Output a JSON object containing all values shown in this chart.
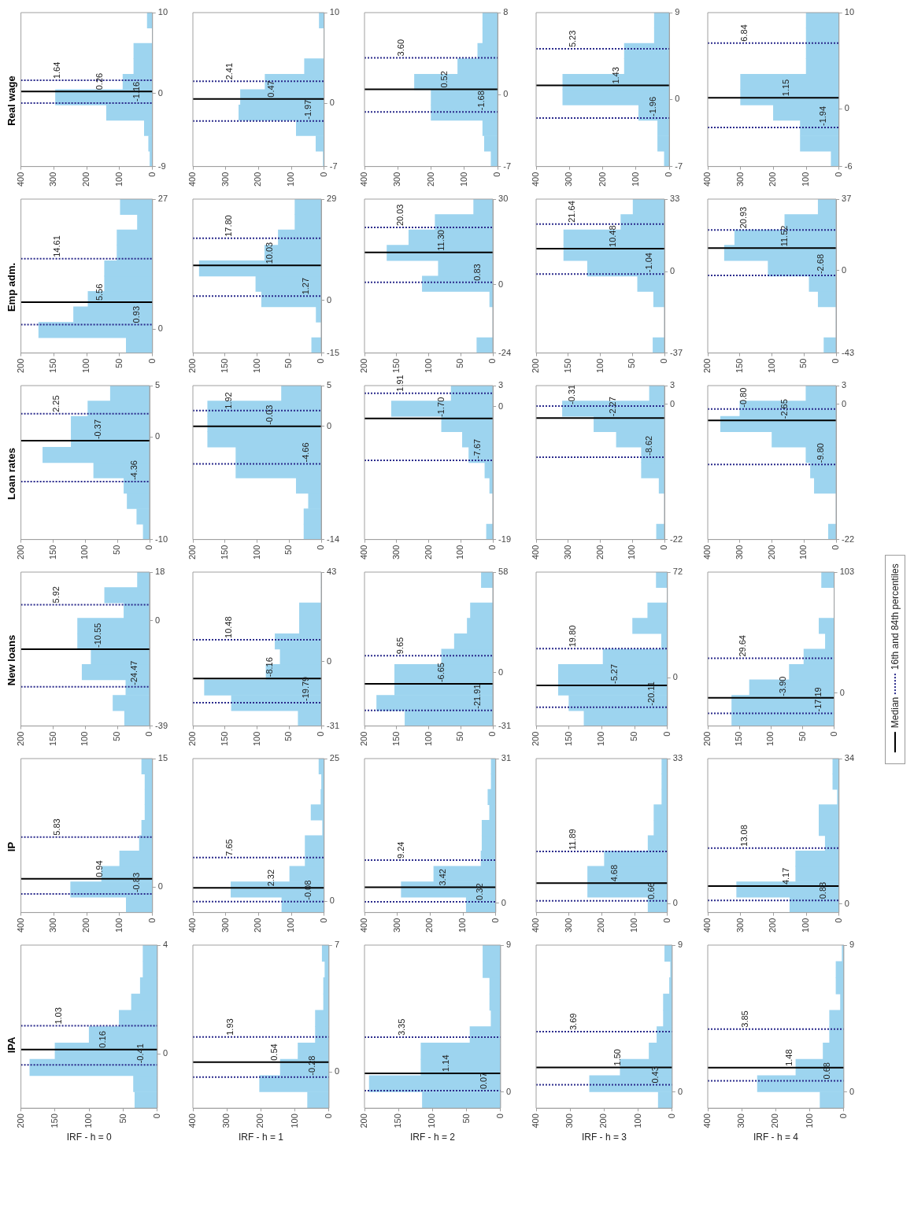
{
  "chart_data": [
    {
      "type": "histogram",
      "orientation": "horizontal",
      "title": "Real wage",
      "bins": [
        -9,
        -7.1,
        -5.2,
        -3.3,
        -1.4,
        0.5,
        2.4,
        4.3,
        6.2,
        8.1,
        10
      ],
      "values": [
        8,
        12,
        25,
        140,
        295,
        90,
        57,
        57,
        0,
        16
      ],
      "color": "#9dd4ef",
      "xlim": [
        400,
        0
      ],
      "xticks": [
        0,
        100,
        200,
        300,
        400
      ],
      "ylim": [
        -9,
        10
      ],
      "yticks": [
        -9,
        0,
        10
      ],
      "ref_lines": [
        {
          "axis": "y",
          "value": -1.16,
          "label": "-1.16",
          "color": "#2b2b8c",
          "line_style": "dotted"
        },
        {
          "axis": "y",
          "value": 0.26,
          "label": "0.26",
          "color": "#000000",
          "line_style": "solid"
        },
        {
          "axis": "y",
          "value": 1.64,
          "label": "1.64",
          "color": "#2b2b8c",
          "line_style": "dotted"
        }
      ]
    },
    {
      "type": "histogram",
      "orientation": "horizontal",
      "bins": [
        -7,
        -5.3,
        -3.6,
        -1.9,
        -0.2,
        1.5,
        3.2,
        4.9,
        6.6,
        8.3,
        10
      ],
      "values": [
        3,
        25,
        85,
        260,
        255,
        180,
        60,
        0,
        0,
        15
      ],
      "color": "#9dd4ef",
      "xlim": [
        400,
        0
      ],
      "xticks": [
        0,
        100,
        200,
        300,
        400
      ],
      "ylim": [
        -7,
        10
      ],
      "yticks": [
        -7,
        0,
        10
      ],
      "ref_lines": [
        {
          "axis": "y",
          "value": -1.97,
          "label": "-1.97",
          "color": "#2b2b8c",
          "line_style": "dotted"
        },
        {
          "axis": "y",
          "value": 0.47,
          "label": "0.47",
          "color": "#000000",
          "line_style": "solid"
        },
        {
          "axis": "y",
          "value": 2.41,
          "label": "2.41",
          "color": "#2b2b8c",
          "line_style": "dotted"
        }
      ]
    },
    {
      "type": "histogram",
      "orientation": "horizontal",
      "bins": [
        -7,
        -5.5,
        -4,
        -2.5,
        -1,
        0.5,
        2,
        3.5,
        5,
        6.5,
        8
      ],
      "values": [
        20,
        40,
        45,
        200,
        200,
        250,
        120,
        60,
        45,
        45
      ],
      "color": "#9dd4ef",
      "xlim": [
        400,
        0
      ],
      "xticks": [
        0,
        100,
        200,
        300,
        400
      ],
      "ylim": [
        -7,
        8
      ],
      "yticks": [
        -7,
        0,
        8
      ],
      "ref_lines": [
        {
          "axis": "y",
          "value": -1.68,
          "label": "-1.68",
          "color": "#2b2b8c",
          "line_style": "dotted"
        },
        {
          "axis": "y",
          "value": 0.52,
          "label": "0.52",
          "color": "#000000",
          "line_style": "solid"
        },
        {
          "axis": "y",
          "value": 3.6,
          "label": "3.60",
          "color": "#2b2b8c",
          "line_style": "dotted"
        }
      ]
    },
    {
      "type": "histogram",
      "orientation": "horizontal",
      "bins": [
        -7,
        -5.4,
        -3.8,
        -2.2,
        -0.6,
        1,
        2.6,
        4.2,
        5.8,
        7.4,
        9
      ],
      "values": [
        15,
        35,
        35,
        92,
        320,
        320,
        135,
        135,
        45,
        45
      ],
      "color": "#9dd4ef",
      "xlim": [
        400,
        0
      ],
      "xticks": [
        0,
        100,
        200,
        300,
        400
      ],
      "ylim": [
        -7,
        9
      ],
      "yticks": [
        -7,
        0,
        9
      ],
      "ref_lines": [
        {
          "axis": "y",
          "value": -1.96,
          "label": "-1.96",
          "color": "#2b2b8c",
          "line_style": "dotted"
        },
        {
          "axis": "y",
          "value": 1.43,
          "label": "1.43",
          "color": "#000000",
          "line_style": "solid"
        },
        {
          "axis": "y",
          "value": 5.23,
          "label": "5.23",
          "color": "#2b2b8c",
          "line_style": "dotted"
        }
      ]
    },
    {
      "type": "histogram",
      "orientation": "horizontal",
      "bins": [
        -6,
        -4.4,
        -2.8,
        -1.2,
        0.4,
        2,
        3.6,
        5.2,
        6.8,
        8.4,
        10
      ],
      "values": [
        24,
        118,
        118,
        200,
        300,
        300,
        100,
        100,
        100,
        100
      ],
      "color": "#9dd4ef",
      "xlim": [
        400,
        0
      ],
      "xticks": [
        0,
        100,
        200,
        300,
        400
      ],
      "ylim": [
        -6,
        10
      ],
      "yticks": [
        -6,
        0,
        10
      ],
      "ref_lines": [
        {
          "axis": "y",
          "value": -1.94,
          "label": "-1.94",
          "color": "#2b2b8c",
          "line_style": "dotted"
        },
        {
          "axis": "y",
          "value": 1.15,
          "label": "1.15",
          "color": "#000000",
          "line_style": "solid"
        },
        {
          "axis": "y",
          "value": 6.84,
          "label": "6.84",
          "color": "#2b2b8c",
          "line_style": "dotted"
        }
      ]
    },
    {
      "type": "histogram",
      "orientation": "horizontal",
      "title": "Emp adm.",
      "bins": [
        -5,
        -1.8,
        1.4,
        4.6,
        7.8,
        11,
        14.2,
        17.4,
        20.6,
        23.8,
        27
      ],
      "values": [
        40,
        173,
        120,
        98,
        73,
        73,
        54,
        54,
        23,
        49
      ],
      "color": "#9dd4ef",
      "xlim": [
        200,
        0
      ],
      "xticks": [
        0,
        50,
        100,
        150,
        200
      ],
      "ylim": [
        -5,
        27
      ],
      "yticks": [
        0,
        27
      ],
      "ref_lines": [
        {
          "axis": "y",
          "value": 0.93,
          "label": "0.93",
          "color": "#2b2b8c",
          "line_style": "dotted"
        },
        {
          "axis": "y",
          "value": 5.56,
          "label": "5.56",
          "color": "#000000",
          "line_style": "solid"
        },
        {
          "axis": "y",
          "value": 14.61,
          "label": "14.61",
          "color": "#2b2b8c",
          "line_style": "dotted"
        }
      ]
    },
    {
      "type": "histogram",
      "orientation": "horizontal",
      "bins": [
        -15,
        -10.6,
        -6.2,
        -1.8,
        2.6,
        7,
        11.4,
        15.8,
        20.2,
        24.6,
        29
      ],
      "values": [
        15,
        0,
        8,
        93,
        102,
        190,
        88,
        67,
        41,
        41
      ],
      "color": "#9dd4ef",
      "xlim": [
        200,
        0
      ],
      "xticks": [
        0,
        50,
        100,
        150,
        200
      ],
      "ylim": [
        -15,
        29
      ],
      "yticks": [
        -15,
        0,
        29
      ],
      "ref_lines": [
        {
          "axis": "y",
          "value": 1.27,
          "label": "1.27",
          "color": "#2b2b8c",
          "line_style": "dotted"
        },
        {
          "axis": "y",
          "value": 10.03,
          "label": "10.03",
          "color": "#000000",
          "line_style": "solid"
        },
        {
          "axis": "y",
          "value": 17.8,
          "label": "17.80",
          "color": "#2b2b8c",
          "line_style": "dotted"
        }
      ]
    },
    {
      "type": "histogram",
      "orientation": "horizontal",
      "bins": [
        -24,
        -18.6,
        -13.2,
        -7.8,
        -2.4,
        3,
        8.4,
        13.8,
        19.2,
        24.6,
        30
      ],
      "values": [
        25,
        0,
        0,
        5,
        110,
        85,
        165,
        131,
        90,
        30
      ],
      "color": "#9dd4ef",
      "xlim": [
        200,
        0
      ],
      "xticks": [
        0,
        50,
        100,
        150,
        200
      ],
      "ylim": [
        -24,
        30
      ],
      "yticks": [
        -24,
        0,
        30
      ],
      "ref_lines": [
        {
          "axis": "y",
          "value": 0.83,
          "label": "0.83",
          "color": "#2b2b8c",
          "line_style": "dotted"
        },
        {
          "axis": "y",
          "value": 11.3,
          "label": "11.30",
          "color": "#000000",
          "line_style": "solid"
        },
        {
          "axis": "y",
          "value": 20.03,
          "label": "20.03",
          "color": "#2b2b8c",
          "line_style": "dotted"
        }
      ]
    },
    {
      "type": "histogram",
      "orientation": "horizontal",
      "bins": [
        -37,
        -30,
        -23,
        -16,
        -9,
        -2,
        5,
        12,
        19,
        26,
        33
      ],
      "values": [
        18,
        0,
        0,
        17,
        42,
        120,
        157,
        157,
        68,
        49
      ],
      "color": "#9dd4ef",
      "xlim": [
        200,
        0
      ],
      "xticks": [
        0,
        50,
        100,
        150,
        200
      ],
      "ylim": [
        -37,
        33
      ],
      "yticks": [
        -37,
        0,
        33
      ],
      "ref_lines": [
        {
          "axis": "y",
          "value": -1.04,
          "label": "-1.04",
          "color": "#2b2b8c",
          "line_style": "dotted"
        },
        {
          "axis": "y",
          "value": 10.48,
          "label": "10.48",
          "color": "#000000",
          "line_style": "solid"
        },
        {
          "axis": "y",
          "value": 21.64,
          "label": "21.64",
          "color": "#2b2b8c",
          "line_style": "dotted"
        }
      ]
    },
    {
      "type": "histogram",
      "orientation": "horizontal",
      "bins": [
        -43,
        -35,
        -27,
        -19,
        -11,
        -3,
        5,
        13,
        21,
        29,
        37
      ],
      "values": [
        19,
        0,
        0,
        28,
        42,
        106,
        174,
        158,
        80,
        28
      ],
      "color": "#9dd4ef",
      "xlim": [
        200,
        0
      ],
      "xticks": [
        0,
        50,
        100,
        150,
        200
      ],
      "ylim": [
        -43,
        37
      ],
      "yticks": [
        -43,
        0,
        37
      ],
      "ref_lines": [
        {
          "axis": "y",
          "value": -2.68,
          "label": "-2.68",
          "color": "#2b2b8c",
          "line_style": "dotted"
        },
        {
          "axis": "y",
          "value": 11.52,
          "label": "11.52",
          "color": "#000000",
          "line_style": "solid"
        },
        {
          "axis": "y",
          "value": 20.93,
          "label": "20.93",
          "color": "#2b2b8c",
          "line_style": "dotted"
        }
      ]
    },
    {
      "type": "histogram",
      "orientation": "horizontal",
      "title": "Loan rates",
      "bins": [
        -10,
        -8.5,
        -7,
        -5.5,
        -4,
        -2.5,
        -1,
        0.5,
        2,
        3.5,
        5
      ],
      "values": [
        10,
        20,
        35,
        40,
        87,
        166,
        122,
        122,
        96,
        61
      ],
      "color": "#9dd4ef",
      "xlim": [
        200,
        0
      ],
      "xticks": [
        0,
        50,
        100,
        150,
        200
      ],
      "ylim": [
        -10,
        5
      ],
      "yticks": [
        -10,
        0,
        5
      ],
      "ref_lines": [
        {
          "axis": "y",
          "value": -4.36,
          "label": "-4.36",
          "color": "#2b2b8c",
          "line_style": "dotted"
        },
        {
          "axis": "y",
          "value": -0.37,
          "label": "-0.37",
          "color": "#000000",
          "line_style": "solid"
        },
        {
          "axis": "y",
          "value": 2.25,
          "label": "2.25",
          "color": "#2b2b8c",
          "line_style": "dotted"
        }
      ]
    },
    {
      "type": "histogram",
      "orientation": "horizontal",
      "bins": [
        -14,
        -12.1,
        -10.2,
        -8.3,
        -6.4,
        -4.5,
        -2.6,
        -0.7,
        1.2,
        3.1,
        5
      ],
      "values": [
        27,
        27,
        20,
        39,
        133,
        133,
        177,
        177,
        177,
        62
      ],
      "color": "#9dd4ef",
      "xlim": [
        200,
        0
      ],
      "xticks": [
        0,
        50,
        100,
        150,
        200
      ],
      "ylim": [
        -14,
        5
      ],
      "yticks": [
        -14,
        0,
        5
      ],
      "ref_lines": [
        {
          "axis": "y",
          "value": -4.66,
          "label": "-4.66",
          "color": "#2b2b8c",
          "line_style": "dotted"
        },
        {
          "axis": "y",
          "value": -0.03,
          "label": "-0.03",
          "color": "#000000",
          "line_style": "solid"
        },
        {
          "axis": "y",
          "value": 1.92,
          "label": "1.92",
          "color": "#2b2b8c",
          "line_style": "dotted"
        }
      ]
    },
    {
      "type": "histogram",
      "orientation": "horizontal",
      "bins": [
        -19,
        -16.8,
        -14.6,
        -12.4,
        -10.2,
        -8,
        -5.8,
        -3.6,
        -1.4,
        0.8,
        3
      ],
      "values": [
        20,
        0,
        0,
        10,
        25,
        75,
        95,
        160,
        316,
        130
      ],
      "color": "#9dd4ef",
      "xlim": [
        400,
        0
      ],
      "xticks": [
        0,
        100,
        200,
        300,
        400
      ],
      "ylim": [
        -19,
        3
      ],
      "yticks": [
        -19,
        0,
        3
      ],
      "ref_lines": [
        {
          "axis": "y",
          "value": -7.67,
          "label": "-7.67",
          "color": "#2b2b8c",
          "line_style": "dotted"
        },
        {
          "axis": "y",
          "value": -1.7,
          "label": "-1.70",
          "color": "#000000",
          "line_style": "solid"
        },
        {
          "axis": "y",
          "value": 1.91,
          "label": "1.91",
          "color": "#2b2b8c",
          "line_style": "dotted"
        }
      ]
    },
    {
      "type": "histogram",
      "orientation": "horizontal",
      "bins": [
        -22,
        -19.5,
        -17,
        -14.5,
        -12,
        -9.5,
        -7,
        -4.5,
        -2,
        0.5,
        3
      ],
      "values": [
        25,
        0,
        0,
        17,
        72,
        72,
        150,
        220,
        318,
        47
      ],
      "color": "#9dd4ef",
      "xlim": [
        400,
        0
      ],
      "xticks": [
        0,
        100,
        200,
        300,
        400
      ],
      "ylim": [
        -22,
        3
      ],
      "yticks": [
        -22,
        0,
        3
      ],
      "ref_lines": [
        {
          "axis": "y",
          "value": -8.62,
          "label": "-8.62",
          "color": "#2b2b8c",
          "line_style": "dotted"
        },
        {
          "axis": "y",
          "value": -2.27,
          "label": "-2.27",
          "color": "#000000",
          "line_style": "solid"
        },
        {
          "axis": "y",
          "value": -0.31,
          "label": "-0.31",
          "color": "#2b2b8c",
          "line_style": "dotted"
        }
      ]
    },
    {
      "type": "histogram",
      "orientation": "horizontal",
      "bins": [
        -22,
        -19.5,
        -17,
        -14.5,
        -12,
        -9.5,
        -7,
        -4.5,
        -2,
        0.5,
        3
      ],
      "values": [
        24,
        0,
        0,
        68,
        80,
        94,
        200,
        360,
        300,
        94
      ],
      "color": "#9dd4ef",
      "xlim": [
        400,
        0
      ],
      "xticks": [
        0,
        100,
        200,
        300,
        400
      ],
      "ylim": [
        -22,
        3
      ],
      "yticks": [
        -22,
        0,
        3
      ],
      "ref_lines": [
        {
          "axis": "y",
          "value": -9.8,
          "label": "-9.80",
          "color": "#2b2b8c",
          "line_style": "dotted"
        },
        {
          "axis": "y",
          "value": -2.65,
          "label": "-2.65",
          "color": "#000000",
          "line_style": "solid"
        },
        {
          "axis": "y",
          "value": -0.8,
          "label": "-0.80",
          "color": "#2b2b8c",
          "line_style": "dotted"
        }
      ]
    },
    {
      "type": "histogram",
      "orientation": "horizontal",
      "title": "New loans",
      "bins": [
        -39,
        -33.3,
        -27.6,
        -21.9,
        -16.2,
        -10.5,
        -4.8,
        0.9,
        6.6,
        12.3,
        18
      ],
      "values": [
        39,
        57,
        37,
        105,
        91,
        112,
        112,
        40,
        70,
        19
      ],
      "color": "#9dd4ef",
      "xlim": [
        200,
        0
      ],
      "xticks": [
        0,
        50,
        100,
        150,
        200
      ],
      "ylim": [
        -39,
        18
      ],
      "yticks": [
        -39,
        0,
        18
      ],
      "ref_lines": [
        {
          "axis": "y",
          "value": -24.47,
          "label": "-24.47",
          "color": "#2b2b8c",
          "line_style": "dotted"
        },
        {
          "axis": "y",
          "value": -10.55,
          "label": "-10.55",
          "color": "#000000",
          "line_style": "solid"
        },
        {
          "axis": "y",
          "value": 5.92,
          "label": "5.92",
          "color": "#2b2b8c",
          "line_style": "dotted"
        }
      ]
    },
    {
      "type": "histogram",
      "orientation": "horizontal",
      "bins": [
        -31,
        -23.6,
        -16.2,
        -8.8,
        -1.4,
        6,
        13.4,
        20.8,
        28.2,
        35.6,
        43
      ],
      "values": [
        36,
        140,
        182,
        86,
        64,
        72,
        34,
        34,
        0,
        0
      ],
      "color": "#9dd4ef",
      "xlim": [
        200,
        0
      ],
      "xticks": [
        0,
        50,
        100,
        150,
        200
      ],
      "ylim": [
        -31,
        43
      ],
      "yticks": [
        -31,
        0,
        43
      ],
      "ref_lines": [
        {
          "axis": "y",
          "value": -19.79,
          "label": "-19.79",
          "color": "#2b2b8c",
          "line_style": "dotted"
        },
        {
          "axis": "y",
          "value": -8.16,
          "label": "-8.16",
          "color": "#000000",
          "line_style": "solid"
        },
        {
          "axis": "y",
          "value": 10.48,
          "label": "10.48",
          "color": "#2b2b8c",
          "line_style": "dotted"
        }
      ]
    },
    {
      "type": "histogram",
      "orientation": "horizontal",
      "bins": [
        -31,
        -22.1,
        -13.2,
        -4.3,
        4.6,
        13.5,
        22.4,
        31.3,
        40.2,
        49.1,
        58
      ],
      "values": [
        137,
        181,
        153,
        153,
        80,
        60,
        40,
        35,
        0,
        18
      ],
      "color": "#9dd4ef",
      "xlim": [
        200,
        0
      ],
      "xticks": [
        0,
        50,
        100,
        150,
        200
      ],
      "ylim": [
        -31,
        58
      ],
      "yticks": [
        -31,
        0,
        58
      ],
      "ref_lines": [
        {
          "axis": "y",
          "value": -21.91,
          "label": "-21.91",
          "color": "#2b2b8c",
          "line_style": "dotted"
        },
        {
          "axis": "y",
          "value": -6.65,
          "label": "-6.65",
          "color": "#000000",
          "line_style": "solid"
        },
        {
          "axis": "y",
          "value": 9.65,
          "label": "9.65",
          "color": "#2b2b8c",
          "line_style": "dotted"
        }
      ]
    },
    {
      "type": "histogram",
      "orientation": "horizontal",
      "bins": [
        -33,
        -22.5,
        -12,
        -1.5,
        9,
        19.5,
        30,
        40.5,
        51,
        61.5,
        72
      ],
      "values": [
        127,
        150,
        166,
        166,
        98,
        9,
        53,
        30,
        0,
        17
      ],
      "color": "#9dd4ef",
      "xlim": [
        200,
        0
      ],
      "xticks": [
        0,
        50,
        100,
        150,
        200
      ],
      "ylim": [
        -33,
        72
      ],
      "yticks": [
        0,
        72
      ],
      "ref_lines": [
        {
          "axis": "y",
          "value": -20.11,
          "label": "-20.11",
          "color": "#2b2b8c",
          "line_style": "dotted"
        },
        {
          "axis": "y",
          "value": -5.27,
          "label": "-5.27",
          "color": "#000000",
          "line_style": "solid"
        },
        {
          "axis": "y",
          "value": 19.8,
          "label": "19.80",
          "color": "#2b2b8c",
          "line_style": "dotted"
        }
      ]
    },
    {
      "type": "histogram",
      "orientation": "horizontal",
      "bins": [
        -28,
        -14.9,
        -1.8,
        11.3,
        24.4,
        37.5,
        50.6,
        63.7,
        76.8,
        89.9,
        103
      ],
      "values": [
        162,
        162,
        134,
        71,
        48,
        14,
        24,
        0,
        0,
        20
      ],
      "color": "#9dd4ef",
      "xlim": [
        200,
        0
      ],
      "xticks": [
        0,
        50,
        100,
        150,
        200
      ],
      "ylim": [
        -28,
        103
      ],
      "yticks": [
        0,
        103
      ],
      "ref_lines": [
        {
          "axis": "y",
          "value": -17.19,
          "label": "-17.19",
          "color": "#2b2b8c",
          "line_style": "dotted"
        },
        {
          "axis": "y",
          "value": -3.9,
          "label": "-3.90",
          "color": "#000000",
          "line_style": "solid"
        },
        {
          "axis": "y",
          "value": 29.64,
          "label": "29.64",
          "color": "#2b2b8c",
          "line_style": "dotted"
        }
      ]
    },
    {
      "type": "histogram",
      "orientation": "horizontal",
      "title": "IP",
      "bins": [
        -3,
        -1.2,
        0.6,
        2.4,
        4.2,
        6,
        7.8,
        9.6,
        11.4,
        13.2,
        15
      ],
      "values": [
        80,
        249,
        155,
        100,
        40,
        33,
        23,
        23,
        23,
        33
      ],
      "color": "#9dd4ef",
      "xlim": [
        400,
        0
      ],
      "xticks": [
        0,
        100,
        200,
        300,
        400
      ],
      "ylim": [
        -3,
        15
      ],
      "yticks": [
        0,
        15
      ],
      "ref_lines": [
        {
          "axis": "y",
          "value": -0.83,
          "label": "-0.83",
          "color": "#2b2b8c",
          "line_style": "dotted"
        },
        {
          "axis": "y",
          "value": 0.94,
          "label": "0.94",
          "color": "#000000",
          "line_style": "solid"
        },
        {
          "axis": "y",
          "value": 5.83,
          "label": "5.83",
          "color": "#2b2b8c",
          "line_style": "dotted"
        }
      ]
    },
    {
      "type": "histogram",
      "orientation": "horizontal",
      "bins": [
        -2,
        0.7,
        3.4,
        6.1,
        8.8,
        11.5,
        14.2,
        16.9,
        19.6,
        22.3,
        25
      ],
      "values": [
        129,
        284,
        105,
        58,
        58,
        5,
        40,
        10,
        8,
        16
      ],
      "color": "#9dd4ef",
      "xlim": [
        400,
        0
      ],
      "xticks": [
        0,
        100,
        200,
        300,
        400
      ],
      "ylim": [
        -2,
        25
      ],
      "yticks": [
        0,
        25
      ],
      "ref_lines": [
        {
          "axis": "y",
          "value": -0.08,
          "label": "-0.08",
          "color": "#2b2b8c",
          "line_style": "dotted"
        },
        {
          "axis": "y",
          "value": 2.32,
          "label": "2.32",
          "color": "#000000",
          "line_style": "solid"
        },
        {
          "axis": "y",
          "value": 7.65,
          "label": "7.65",
          "color": "#2b2b8c",
          "line_style": "dotted"
        }
      ]
    },
    {
      "type": "histogram",
      "orientation": "horizontal",
      "bins": [
        -2,
        1.3,
        4.6,
        7.9,
        11.2,
        14.5,
        17.8,
        21.1,
        24.4,
        27.7,
        31
      ],
      "values": [
        90,
        288,
        189,
        45,
        42,
        42,
        19,
        24,
        14,
        14
      ],
      "color": "#9dd4ef",
      "xlim": [
        400,
        0
      ],
      "xticks": [
        0,
        100,
        200,
        300,
        400
      ],
      "ylim": [
        -2,
        31
      ],
      "yticks": [
        0,
        31
      ],
      "ref_lines": [
        {
          "axis": "y",
          "value": 0.32,
          "label": "0.32",
          "color": "#2b2b8c",
          "line_style": "dotted"
        },
        {
          "axis": "y",
          "value": 3.42,
          "label": "3.42",
          "color": "#000000",
          "line_style": "solid"
        },
        {
          "axis": "y",
          "value": 9.24,
          "label": "9.24",
          "color": "#2b2b8c",
          "line_style": "dotted"
        }
      ]
    },
    {
      "type": "histogram",
      "orientation": "horizontal",
      "bins": [
        -2,
        1.5,
        5,
        8.5,
        12,
        15.5,
        19,
        22.5,
        26,
        29.5,
        33
      ],
      "values": [
        59,
        243,
        243,
        192,
        59,
        41,
        41,
        17,
        17,
        17
      ],
      "color": "#9dd4ef",
      "xlim": [
        400,
        0
      ],
      "xticks": [
        0,
        100,
        200,
        300,
        400
      ],
      "ylim": [
        -2,
        33
      ],
      "yticks": [
        0,
        33
      ],
      "ref_lines": [
        {
          "axis": "y",
          "value": 0.66,
          "label": "0.66",
          "color": "#2b2b8c",
          "line_style": "dotted"
        },
        {
          "axis": "y",
          "value": 4.68,
          "label": "4.68",
          "color": "#000000",
          "line_style": "solid"
        },
        {
          "axis": "y",
          "value": 11.89,
          "label": "11.89",
          "color": "#2b2b8c",
          "line_style": "dotted"
        }
      ]
    },
    {
      "type": "histogram",
      "orientation": "horizontal",
      "bins": [
        -2,
        1.6,
        5.2,
        8.8,
        12.4,
        16,
        19.6,
        23.2,
        26.8,
        30.4,
        34
      ],
      "values": [
        150,
        312,
        132,
        132,
        42,
        61,
        61,
        5,
        19,
        19
      ],
      "color": "#9dd4ef",
      "xlim": [
        400,
        0
      ],
      "xticks": [
        0,
        100,
        200,
        300,
        400
      ],
      "ylim": [
        -2,
        34
      ],
      "yticks": [
        0,
        34
      ],
      "ref_lines": [
        {
          "axis": "y",
          "value": 0.83,
          "label": "0.83",
          "color": "#2b2b8c",
          "line_style": "dotted"
        },
        {
          "axis": "y",
          "value": 4.17,
          "label": "4.17",
          "color": "#000000",
          "line_style": "solid"
        },
        {
          "axis": "y",
          "value": 13.08,
          "label": "13.08",
          "color": "#2b2b8c",
          "line_style": "dotted"
        }
      ]
    },
    {
      "type": "histogram",
      "orientation": "horizontal",
      "title": "IPA",
      "xlabel": "IRF - h = 0",
      "bins": [
        -2,
        -1.4,
        -0.8,
        -0.2,
        0.4,
        1,
        1.6,
        2.2,
        2.8,
        3.4,
        4
      ],
      "values": [
        33,
        35,
        187,
        150,
        100,
        56,
        38,
        25,
        21,
        21
      ],
      "color": "#9dd4ef",
      "xlim": [
        200,
        0
      ],
      "xticks": [
        0,
        50,
        100,
        150,
        200
      ],
      "ylim": [
        -2,
        4
      ],
      "yticks": [
        0,
        4
      ],
      "ref_lines": [
        {
          "axis": "y",
          "value": -0.41,
          "label": "-0.41",
          "color": "#2b2b8c",
          "line_style": "dotted"
        },
        {
          "axis": "y",
          "value": 0.16,
          "label": "0.16",
          "color": "#000000",
          "line_style": "solid"
        },
        {
          "axis": "y",
          "value": 1.03,
          "label": "1.03",
          "color": "#2b2b8c",
          "line_style": "dotted"
        }
      ]
    },
    {
      "type": "histogram",
      "orientation": "horizontal",
      "xlabel": "IRF - h = 1",
      "bins": [
        -2,
        -1.1,
        -0.2,
        0.7,
        1.6,
        2.5,
        3.4,
        4.3,
        5.2,
        6.1,
        7
      ],
      "values": [
        63,
        204,
        143,
        91,
        40,
        40,
        16,
        16,
        12,
        20
      ],
      "color": "#9dd4ef",
      "xlim": [
        400,
        0
      ],
      "xticks": [
        0,
        100,
        200,
        300,
        400
      ],
      "ylim": [
        -2,
        7
      ],
      "yticks": [
        0,
        7
      ],
      "ref_lines": [
        {
          "axis": "y",
          "value": -0.28,
          "label": "-0.28",
          "color": "#2b2b8c",
          "line_style": "dotted"
        },
        {
          "axis": "y",
          "value": 0.54,
          "label": "0.54",
          "color": "#000000",
          "line_style": "solid"
        },
        {
          "axis": "y",
          "value": 1.93,
          "label": "1.93",
          "color": "#2b2b8c",
          "line_style": "dotted"
        }
      ]
    },
    {
      "type": "histogram",
      "orientation": "horizontal",
      "xlabel": "IRF - h = 2",
      "bins": [
        -1,
        0,
        1,
        2,
        3,
        4,
        5,
        6,
        7,
        8,
        9
      ],
      "values": [
        115,
        193,
        117,
        117,
        45,
        14,
        16,
        16,
        26,
        26
      ],
      "color": "#9dd4ef",
      "xlim": [
        200,
        0
      ],
      "xticks": [
        0,
        50,
        100,
        150,
        200
      ],
      "ylim": [
        -1,
        9
      ],
      "yticks": [
        0,
        9
      ],
      "ref_lines": [
        {
          "axis": "y",
          "value": 0.07,
          "label": "0.07",
          "color": "#2b2b8c",
          "line_style": "dotted"
        },
        {
          "axis": "y",
          "value": 1.14,
          "label": "1.14",
          "color": "#000000",
          "line_style": "solid"
        },
        {
          "axis": "y",
          "value": 3.35,
          "label": "3.35",
          "color": "#2b2b8c",
          "line_style": "dotted"
        }
      ]
    },
    {
      "type": "histogram",
      "orientation": "horizontal",
      "xlabel": "IRF - h = 3",
      "bins": [
        -1,
        0,
        1,
        2,
        3,
        4,
        5,
        6,
        7,
        8,
        9
      ],
      "values": [
        41,
        243,
        153,
        68,
        45,
        26,
        26,
        8,
        5,
        22
      ],
      "color": "#9dd4ef",
      "xlim": [
        400,
        0
      ],
      "xticks": [
        0,
        100,
        200,
        300,
        400
      ],
      "ylim": [
        -1,
        9
      ],
      "yticks": [
        0,
        9
      ],
      "ref_lines": [
        {
          "axis": "y",
          "value": 0.43,
          "label": "0.43",
          "color": "#2b2b8c",
          "line_style": "dotted"
        },
        {
          "axis": "y",
          "value": 1.5,
          "label": "1.50",
          "color": "#000000",
          "line_style": "solid"
        },
        {
          "axis": "y",
          "value": 3.69,
          "label": "3.69",
          "color": "#2b2b8c",
          "line_style": "dotted"
        }
      ]
    },
    {
      "type": "histogram",
      "orientation": "horizontal",
      "xlabel": "IRF - h = 4",
      "bins": [
        -1,
        0,
        1,
        2,
        3,
        4,
        5,
        6,
        7,
        8,
        9
      ],
      "values": [
        70,
        254,
        141,
        61,
        42,
        42,
        10,
        23,
        23,
        5
      ],
      "color": "#9dd4ef",
      "xlim": [
        400,
        0
      ],
      "xticks": [
        0,
        100,
        200,
        300,
        400
      ],
      "ylim": [
        -1,
        9
      ],
      "yticks": [
        0,
        9
      ],
      "ref_lines": [
        {
          "axis": "y",
          "value": 0.68,
          "label": "0.68",
          "color": "#2b2b8c",
          "line_style": "dotted"
        },
        {
          "axis": "y",
          "value": 1.48,
          "label": "1.48",
          "color": "#000000",
          "line_style": "solid"
        },
        {
          "axis": "y",
          "value": 3.85,
          "label": "3.85",
          "color": "#2b2b8c",
          "line_style": "dotted"
        }
      ]
    },
    {
      "type": "other",
      "annotations": [
        "Median",
        "16th and 84th percentiles"
      ]
    }
  ]
}
